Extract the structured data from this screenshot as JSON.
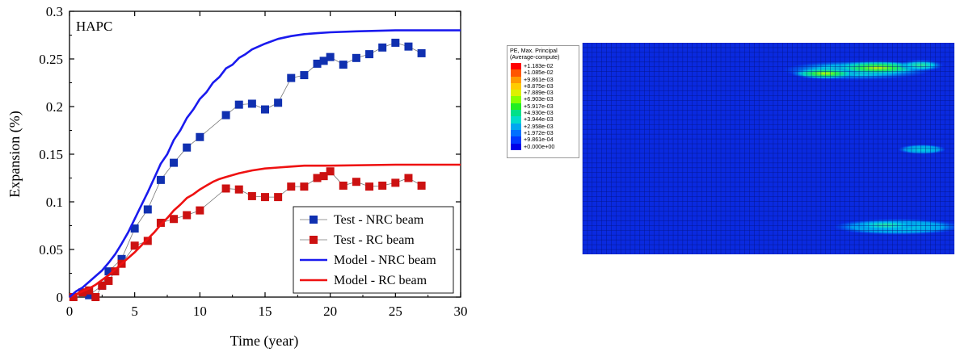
{
  "chart_data": [
    {
      "type": "line",
      "panel_label": "HAPC",
      "xlabel": "Time (year)",
      "ylabel": "Expansion (%)",
      "xlim": [
        0,
        30
      ],
      "ylim": [
        0,
        0.3
      ],
      "x_ticks": [
        "0",
        "5",
        "10",
        "15",
        "20",
        "25",
        "30"
      ],
      "y_ticks": [
        "0",
        "0.05",
        "0.1",
        "0.15",
        "0.2",
        "0.25",
        "0.3"
      ],
      "grid": false,
      "legend_position": "bottom-right",
      "series": [
        {
          "name": "Test - NRC beam",
          "kind": "scatter-line",
          "color": "#1030b0",
          "points": [
            [
              1.5,
              0.002
            ],
            [
              2.5,
              0.012
            ],
            [
              3.0,
              0.027
            ],
            [
              4.0,
              0.04
            ],
            [
              5.0,
              0.072
            ],
            [
              6.0,
              0.092
            ],
            [
              7.0,
              0.123
            ],
            [
              8.0,
              0.141
            ],
            [
              9.0,
              0.157
            ],
            [
              10.0,
              0.168
            ],
            [
              12.0,
              0.191
            ],
            [
              13.0,
              0.202
            ],
            [
              14.0,
              0.203
            ],
            [
              15.0,
              0.197
            ],
            [
              16.0,
              0.204
            ],
            [
              17.0,
              0.23
            ],
            [
              18.0,
              0.233
            ],
            [
              19.0,
              0.245
            ],
            [
              19.5,
              0.248
            ],
            [
              20.0,
              0.252
            ],
            [
              21.0,
              0.244
            ],
            [
              22.0,
              0.251
            ],
            [
              23.0,
              0.255
            ],
            [
              24.0,
              0.262
            ],
            [
              25.0,
              0.267
            ],
            [
              26.0,
              0.263
            ],
            [
              27.0,
              0.256
            ]
          ]
        },
        {
          "name": "Test - RC beam",
          "kind": "scatter-line",
          "color": "#cc1111",
          "points": [
            [
              0.3,
              0.0
            ],
            [
              1.0,
              0.005
            ],
            [
              1.5,
              0.007
            ],
            [
              2.0,
              0.0
            ],
            [
              2.5,
              0.012
            ],
            [
              3.0,
              0.017
            ],
            [
              3.5,
              0.027
            ],
            [
              4.0,
              0.035
            ],
            [
              5.0,
              0.054
            ],
            [
              6.0,
              0.059
            ],
            [
              7.0,
              0.078
            ],
            [
              8.0,
              0.082
            ],
            [
              9.0,
              0.086
            ],
            [
              10.0,
              0.091
            ],
            [
              12.0,
              0.114
            ],
            [
              13.0,
              0.113
            ],
            [
              14.0,
              0.106
            ],
            [
              15.0,
              0.105
            ],
            [
              16.0,
              0.105
            ],
            [
              17.0,
              0.116
            ],
            [
              18.0,
              0.116
            ],
            [
              19.0,
              0.125
            ],
            [
              19.5,
              0.127
            ],
            [
              20.0,
              0.132
            ],
            [
              21.0,
              0.117
            ],
            [
              22.0,
              0.121
            ],
            [
              23.0,
              0.116
            ],
            [
              24.0,
              0.117
            ],
            [
              25.0,
              0.12
            ],
            [
              26.0,
              0.125
            ],
            [
              27.0,
              0.117
            ]
          ]
        },
        {
          "name": "Model - NRC beam",
          "kind": "line",
          "color": "#1a1aee",
          "points": [
            [
              0,
              0
            ],
            [
              0.5,
              0.006
            ],
            [
              1.0,
              0.01
            ],
            [
              1.5,
              0.016
            ],
            [
              2.0,
              0.022
            ],
            [
              2.5,
              0.028
            ],
            [
              3.0,
              0.036
            ],
            [
              3.5,
              0.045
            ],
            [
              4.0,
              0.056
            ],
            [
              4.5,
              0.068
            ],
            [
              5.0,
              0.082
            ],
            [
              5.5,
              0.096
            ],
            [
              6.0,
              0.11
            ],
            [
              6.5,
              0.125
            ],
            [
              7.0,
              0.14
            ],
            [
              7.5,
              0.15
            ],
            [
              8.0,
              0.165
            ],
            [
              8.5,
              0.175
            ],
            [
              9.0,
              0.188
            ],
            [
              9.5,
              0.197
            ],
            [
              10.0,
              0.208
            ],
            [
              10.5,
              0.215
            ],
            [
              11.0,
              0.225
            ],
            [
              11.5,
              0.231
            ],
            [
              12.0,
              0.24
            ],
            [
              12.5,
              0.244
            ],
            [
              13.0,
              0.251
            ],
            [
              13.5,
              0.255
            ],
            [
              14.0,
              0.26
            ],
            [
              15.0,
              0.266
            ],
            [
              16.0,
              0.271
            ],
            [
              17.0,
              0.274
            ],
            [
              18.0,
              0.276
            ],
            [
              19.0,
              0.277
            ],
            [
              20.0,
              0.278
            ],
            [
              22.0,
              0.279
            ],
            [
              25.0,
              0.28
            ],
            [
              30.0,
              0.28
            ]
          ]
        },
        {
          "name": "Model - RC beam",
          "kind": "line",
          "color": "#ee1111",
          "points": [
            [
              0,
              0
            ],
            [
              0.5,
              0.003
            ],
            [
              1.0,
              0.006
            ],
            [
              1.5,
              0.009
            ],
            [
              2.0,
              0.013
            ],
            [
              2.5,
              0.018
            ],
            [
              3.0,
              0.023
            ],
            [
              3.5,
              0.029
            ],
            [
              4.0,
              0.035
            ],
            [
              4.5,
              0.041
            ],
            [
              5.0,
              0.047
            ],
            [
              5.5,
              0.054
            ],
            [
              6.0,
              0.061
            ],
            [
              6.5,
              0.068
            ],
            [
              7.0,
              0.076
            ],
            [
              7.5,
              0.083
            ],
            [
              8.0,
              0.091
            ],
            [
              8.5,
              0.097
            ],
            [
              9.0,
              0.104
            ],
            [
              9.5,
              0.108
            ],
            [
              10.0,
              0.113
            ],
            [
              10.5,
              0.117
            ],
            [
              11.0,
              0.121
            ],
            [
              11.5,
              0.124
            ],
            [
              12.0,
              0.126
            ],
            [
              13.0,
              0.13
            ],
            [
              14.0,
              0.133
            ],
            [
              15.0,
              0.135
            ],
            [
              16.0,
              0.136
            ],
            [
              17.0,
              0.137
            ],
            [
              18.0,
              0.138
            ],
            [
              20.0,
              0.138
            ],
            [
              25.0,
              0.139
            ],
            [
              30.0,
              0.139
            ]
          ]
        }
      ]
    },
    {
      "type": "heatmap",
      "legend": {
        "title_line1": "PE, Max. Principal",
        "title_line2": "(Average-compute)",
        "levels": [
          {
            "label": "+1.183e-02",
            "color": "#ff0000"
          },
          {
            "label": "+1.085e-02",
            "color": "#ff5500"
          },
          {
            "label": "+9.861e-03",
            "color": "#ff9900"
          },
          {
            "label": "+8.875e-03",
            "color": "#ffcc00"
          },
          {
            "label": "+7.889e-03",
            "color": "#ddf000"
          },
          {
            "label": "+6.903e-03",
            "color": "#88ff00"
          },
          {
            "label": "+5.917e-03",
            "color": "#22ee22"
          },
          {
            "label": "+4.930e-03",
            "color": "#00e08a"
          },
          {
            "label": "+3.944e-03",
            "color": "#00dccc"
          },
          {
            "label": "+2.958e-03",
            "color": "#00a8f0"
          },
          {
            "label": "+1.972e-03",
            "color": "#0070ff"
          },
          {
            "label": "+9.861e-04",
            "color": "#0038ff"
          },
          {
            "label": "+0.000e+00",
            "color": "#0000e8"
          }
        ]
      },
      "background_color": "#0a2ae0",
      "mesh_color": "#06168a"
    }
  ]
}
